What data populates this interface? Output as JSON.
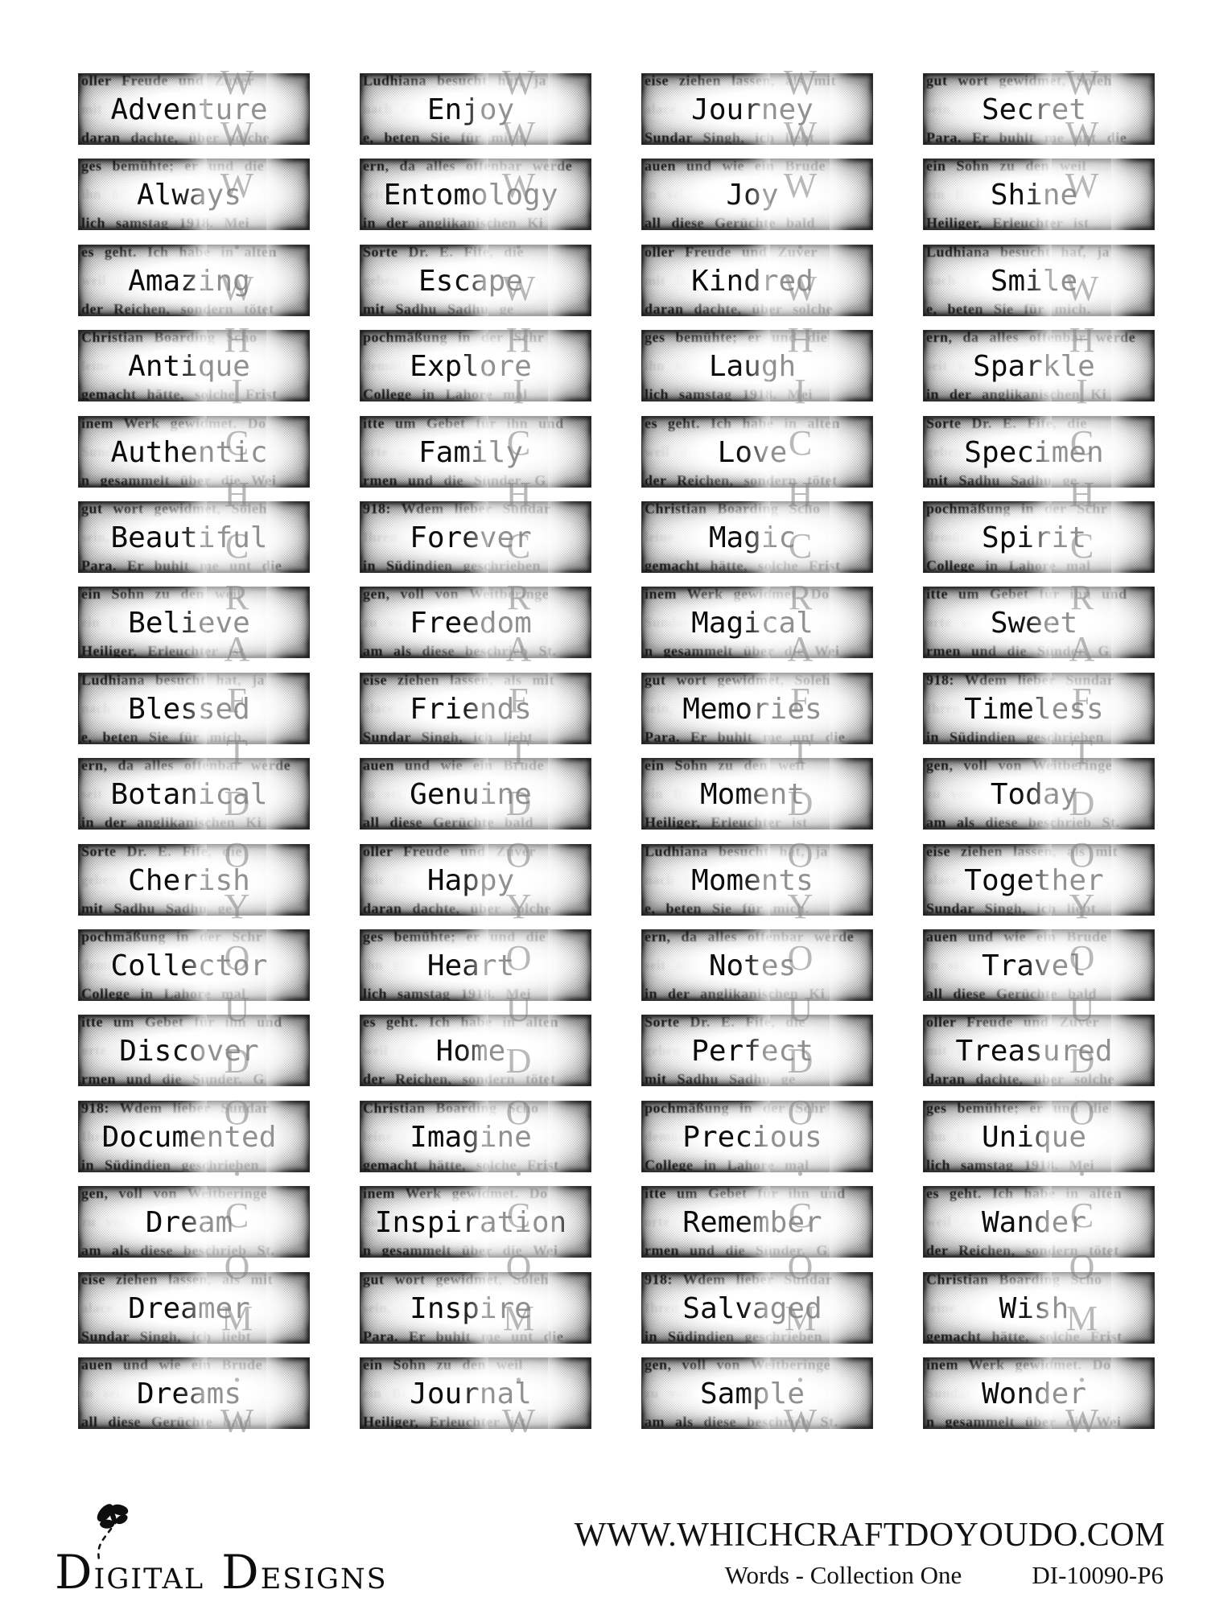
{
  "watermark": {
    "text": "WWW.WHICHCRAFTDOYOUDO.COM",
    "color": "#808080"
  },
  "grid": {
    "rows": 16,
    "cols": 4,
    "words": [
      [
        "Adventure",
        "Enjoy",
        "Journey",
        "Secret"
      ],
      [
        "Always",
        "Entomology",
        "Joy",
        "Shine"
      ],
      [
        "Amazing",
        "Escape",
        "Kindred",
        "Smile"
      ],
      [
        "Antique",
        "Explore",
        "Laugh",
        "Sparkle"
      ],
      [
        "Authentic",
        "Family",
        "Love",
        "Specimen"
      ],
      [
        "Beautiful",
        "Forever",
        "Magic",
        "Spirit"
      ],
      [
        "Believe",
        "Freedom",
        "Magical",
        "Sweet"
      ],
      [
        "Blessed",
        "Friends",
        "Memories",
        "Timeless"
      ],
      [
        "Botanical",
        "Genuine",
        "Moment",
        "Today"
      ],
      [
        "Cherish",
        "Happy",
        "Moments",
        "Together"
      ],
      [
        "Collector",
        "Heart",
        "Notes",
        "Travel"
      ],
      [
        "Discover",
        "Home",
        "Perfect",
        "Treasured"
      ],
      [
        "Documented",
        "Imagine",
        "Precious",
        "Unique"
      ],
      [
        "Dream",
        "Inspiration",
        "Remember",
        "Wander"
      ],
      [
        "Dreamer",
        "Inspire",
        "Salvaged",
        "Wish"
      ],
      [
        "Dreams",
        "Journal",
        "Sample",
        "Wonder"
      ]
    ]
  },
  "texture": {
    "fragments": [
      {
        "top": "oller Freude und Zuver",
        "mid": "mit ihnen bei der Kirche",
        "bot": "daran dachte, über solche"
      },
      {
        "top": "gen, voll von Weitberinge",
        "mid": "zu von Studien des Sad",
        "bot": "am als diese beschrieb St."
      },
      {
        "top": "pochmäßung in der Schr",
        "mid": "demütige Seele bei Wer",
        "bot": "College in Lahore mal"
      },
      {
        "top": "Ludhiana besucht hat, ja",
        "mid": "nach Ceylon im November",
        "bot": "e, beten Sie für mich."
      },
      {
        "top": "inem Werk gewidmet. Do",
        "mid": "Sundar bei den Reichen",
        "bot": "n gesammelt über die Wei"
      },
      {
        "top": "ges bemühte; er und die",
        "mid": "ihn über die Heiligen",
        "bot": "lich samstag 1918. Mei"
      },
      {
        "top": "eise ziehen lassen, als mit",
        "mid": "alace Calcutta dieser Er",
        "bot": "Sundar Singh, ich liebt"
      },
      {
        "top": "itte um Gebet für ihn und",
        "mid": "orte welche bei der Hilfe",
        "bot": "rmen und die Sünder. G"
      },
      {
        "top": "ern, da alles offenbar werde",
        "mid": "seit mit der Kirche das",
        "bot": "in der anglikanischen Ki"
      },
      {
        "top": "gut wort gewidmet, Soleh",
        "mid": "sein, erfahren, daß es Ih",
        "bot": "Para. Er buhlt me unt die"
      },
      {
        "top": "es geht. Ich habe in alten",
        "mid": "weil dieser jünger der",
        "bot": "der Reichen, sondern tötet"
      },
      {
        "top": "auen und wie ein Brude",
        "mid": "in sei. Gut, zu freuen",
        "bot": "all diese Gerüchte bald"
      },
      {
        "top": "918: Wdem lieber Sundar",
        "mid": "Ihren Brief zu erhal",
        "bot": "in Südindien geschrieben"
      },
      {
        "top": "Sorte Dr. E. Fife, die",
        "mid": "geben dar Singh von Kin",
        "bot": "mit Sadhu Sadhu ge"
      },
      {
        "top": "ein Sohn zu den weil",
        "mid": "ein Bruder zu sein 150",
        "bot": "Heiliger, Erleuchter ist"
      },
      {
        "top": "Christian Boarding Scho",
        "mid": "leine weitere Lagen ihn",
        "bot": "gemacht hätte, solche Frist"
      }
    ]
  },
  "footer": {
    "logo_word1": "Digital",
    "logo_word2": "Designs",
    "url": "WWW.WHICHCRAFTDOYOUDO.COM",
    "collection": "Words - Collection One",
    "sku": "DI-10090-P6"
  }
}
